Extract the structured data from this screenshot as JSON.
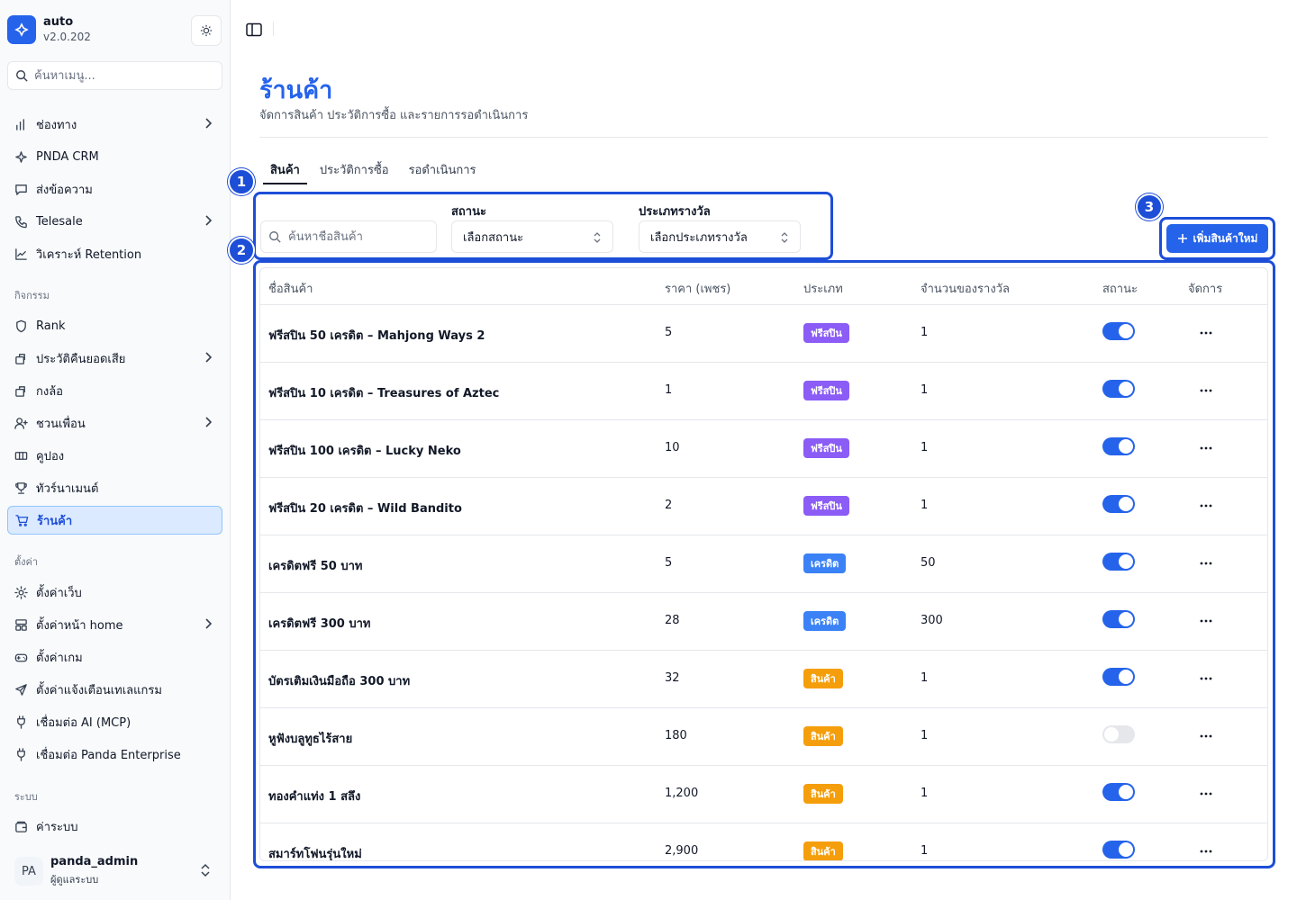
{
  "brand": {
    "name": "auto",
    "version": "v2.0.202"
  },
  "sidebar": {
    "search_placeholder": "ค้นหาเมนู...",
    "items_main": [
      {
        "label": "ช่องทาง",
        "icon": "bar-chart-icon",
        "chevron": true
      },
      {
        "label": "PNDA CRM",
        "icon": "sparkle-icon",
        "chevron": false
      },
      {
        "label": "ส่งข้อความ",
        "icon": "message-icon",
        "chevron": false
      },
      {
        "label": "Telesale",
        "icon": "phone-icon",
        "chevron": true
      },
      {
        "label": "วิเคราะห์ Retention",
        "icon": "line-chart-icon",
        "chevron": false
      }
    ],
    "section_activity": "กิจกรรม",
    "items_activity": [
      {
        "label": "Rank",
        "icon": "shield-icon",
        "chevron": false
      },
      {
        "label": "ประวัติคืนยอดเสีย",
        "icon": "gift-icon",
        "chevron": true
      },
      {
        "label": "กงล้อ",
        "icon": "gift-icon",
        "chevron": false
      },
      {
        "label": "ชวนเพื่อน",
        "icon": "user-plus-icon",
        "chevron": true
      },
      {
        "label": "คูปอง",
        "icon": "ticket-icon",
        "chevron": false
      },
      {
        "label": "ทัวร์นาเมนต์",
        "icon": "trophy-icon",
        "chevron": false
      },
      {
        "label": "ร้านค้า",
        "icon": "cart-icon",
        "chevron": false,
        "active": true
      }
    ],
    "section_settings": "ตั้งค่า",
    "items_settings": [
      {
        "label": "ตั้งค่าเว็บ",
        "icon": "gear-icon",
        "chevron": false
      },
      {
        "label": "ตั้งค่าหน้า home",
        "icon": "layout-icon",
        "chevron": true
      },
      {
        "label": "ตั้งค่าเกม",
        "icon": "gamepad-icon",
        "chevron": false
      },
      {
        "label": "ตั้งค่าแจ้งเตือนเทเลแกรม",
        "icon": "send-icon",
        "chevron": false
      },
      {
        "label": "เชื่อมต่อ AI (MCP)",
        "icon": "plug-icon",
        "chevron": false
      },
      {
        "label": "เชื่อมต่อ Panda Enterprise",
        "icon": "plug-icon",
        "chevron": false
      }
    ],
    "section_system": "ระบบ",
    "items_system": [
      {
        "label": "ค่าระบบ",
        "icon": "wallet-icon",
        "chevron": false
      }
    ],
    "user": {
      "initials": "PA",
      "name": "panda_admin",
      "role": "ผู้ดูแลระบบ"
    }
  },
  "page": {
    "title": "ร้านค้า",
    "subtitle": "จัดการสินค้า ประวัติการซื้อ และรายการรอดำเนินการ",
    "tabs": [
      "สินค้า",
      "ประวัติการซื้อ",
      "รอดำเนินการ"
    ],
    "active_tab": 0
  },
  "filters": {
    "search_placeholder": "ค้นหาชื่อสินค้า",
    "status_label": "สถานะ",
    "status_value": "เลือกสถานะ",
    "reward_label": "ประเภทรางวัล",
    "reward_value": "เลือกประเภทรางวัล"
  },
  "add_button": "เพิ่มสินค้าใหม่",
  "callouts": [
    "1",
    "2",
    "3"
  ],
  "table": {
    "headers": [
      "ชื่อสินค้า",
      "ราคา (เพชร)",
      "ประเภท",
      "จำนวนของรางวัล",
      "สถานะ",
      "จัดการ"
    ],
    "rows": [
      {
        "name": "ฟรีสปิน 50 เครดิต – Mahjong Ways 2",
        "price": "5",
        "type": "ฟรีสปิน",
        "type_color": "#8b5cf6",
        "qty": "1",
        "enabled": true
      },
      {
        "name": "ฟรีสปิน 10 เครดิต – Treasures of Aztec",
        "price": "1",
        "type": "ฟรีสปิน",
        "type_color": "#8b5cf6",
        "qty": "1",
        "enabled": true
      },
      {
        "name": "ฟรีสปิน 100 เครดิต – Lucky Neko",
        "price": "10",
        "type": "ฟรีสปิน",
        "type_color": "#8b5cf6",
        "qty": "1",
        "enabled": true
      },
      {
        "name": "ฟรีสปิน 20 เครดิต – Wild Bandito",
        "price": "2",
        "type": "ฟรีสปิน",
        "type_color": "#8b5cf6",
        "qty": "1",
        "enabled": true
      },
      {
        "name": "เครดิตฟรี 50 บาท",
        "price": "5",
        "type": "เครดิต",
        "type_color": "#3b82f6",
        "qty": "50",
        "enabled": true
      },
      {
        "name": "เครดิตฟรี 300 บาท",
        "price": "28",
        "type": "เครดิต",
        "type_color": "#3b82f6",
        "qty": "300",
        "enabled": true
      },
      {
        "name": "บัตรเติมเงินมือถือ 300 บาท",
        "price": "32",
        "type": "สินค้า",
        "type_color": "#f59e0b",
        "qty": "1",
        "enabled": true
      },
      {
        "name": "หูฟังบลูทูธไร้สาย",
        "price": "180",
        "type": "สินค้า",
        "type_color": "#f59e0b",
        "qty": "1",
        "enabled": false
      },
      {
        "name": "ทองคำแท่ง 1 สลึง",
        "price": "1,200",
        "type": "สินค้า",
        "type_color": "#f59e0b",
        "qty": "1",
        "enabled": true
      },
      {
        "name": "สมาร์ทโฟนรุ่นใหม่",
        "price": "2,900",
        "type": "สินค้า",
        "type_color": "#f59e0b",
        "qty": "1",
        "enabled": true
      }
    ]
  },
  "accent_color": "#2563eb",
  "highlight_color": "#1d4ed8"
}
